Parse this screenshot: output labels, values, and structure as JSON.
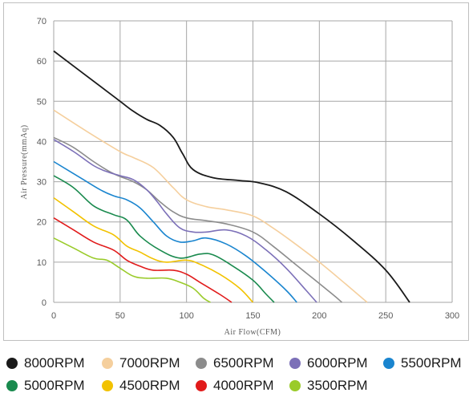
{
  "chart_data": {
    "type": "line",
    "title": "",
    "xlabel": "Air Flow(CFM)",
    "ylabel": "Air Pressure(mmAq)",
    "xlim": [
      0,
      300
    ],
    "ylim": [
      0,
      70
    ],
    "xticks": [
      "0",
      "50",
      "100",
      "150",
      "200",
      "250",
      "300"
    ],
    "yticks": [
      "0",
      "10",
      "20",
      "30",
      "40",
      "50",
      "60",
      "70"
    ],
    "grid": true,
    "legend_position": "bottom",
    "series": [
      {
        "name": "8000RPM",
        "color": "#1a1a1a",
        "points": [
          [
            0,
            62.5
          ],
          [
            20,
            57.5
          ],
          [
            40,
            52.5
          ],
          [
            50,
            50
          ],
          [
            60,
            47.5
          ],
          [
            70,
            45.5
          ],
          [
            80,
            44
          ],
          [
            90,
            41
          ],
          [
            97,
            37
          ],
          [
            105,
            33
          ],
          [
            120,
            31
          ],
          [
            140,
            30.3
          ],
          [
            155,
            29.7
          ],
          [
            175,
            27.5
          ],
          [
            200,
            22
          ],
          [
            225,
            15.5
          ],
          [
            250,
            8
          ],
          [
            268,
            0
          ]
        ]
      },
      {
        "name": "7000RPM",
        "color": "#f5cf9d",
        "points": [
          [
            0,
            47.8
          ],
          [
            25,
            42.5
          ],
          [
            50,
            37.5
          ],
          [
            60,
            36
          ],
          [
            75,
            33.5
          ],
          [
            90,
            28.5
          ],
          [
            100,
            25.5
          ],
          [
            115,
            23.8
          ],
          [
            130,
            23
          ],
          [
            150,
            21.5
          ],
          [
            165,
            18.5
          ],
          [
            180,
            15
          ],
          [
            200,
            10
          ],
          [
            220,
            4.5
          ],
          [
            236,
            0
          ]
        ]
      },
      {
        "name": "6500RPM",
        "color": "#8c8c8c",
        "points": [
          [
            0,
            41
          ],
          [
            15,
            38.5
          ],
          [
            30,
            35
          ],
          [
            45,
            32
          ],
          [
            60,
            30
          ],
          [
            70,
            28
          ],
          [
            80,
            25
          ],
          [
            90,
            22.5
          ],
          [
            100,
            21
          ],
          [
            115,
            20.3
          ],
          [
            130,
            19.5
          ],
          [
            150,
            17.5
          ],
          [
            165,
            14
          ],
          [
            180,
            10
          ],
          [
            195,
            6
          ],
          [
            210,
            2
          ],
          [
            217,
            0
          ]
        ]
      },
      {
        "name": "6000RPM",
        "color": "#7c70b8",
        "points": [
          [
            0,
            40.5
          ],
          [
            15,
            37.5
          ],
          [
            30,
            34
          ],
          [
            40,
            32.5
          ],
          [
            50,
            31.5
          ],
          [
            60,
            30.5
          ],
          [
            70,
            28
          ],
          [
            78,
            25
          ],
          [
            85,
            22
          ],
          [
            95,
            18.5
          ],
          [
            105,
            17.5
          ],
          [
            115,
            17.5
          ],
          [
            130,
            18
          ],
          [
            145,
            16.5
          ],
          [
            160,
            13
          ],
          [
            175,
            8.5
          ],
          [
            190,
            3
          ],
          [
            198,
            0
          ]
        ]
      },
      {
        "name": "5500RPM",
        "color": "#1a85cf",
        "points": [
          [
            0,
            35
          ],
          [
            20,
            31
          ],
          [
            35,
            28
          ],
          [
            45,
            26.5
          ],
          [
            55,
            25.5
          ],
          [
            65,
            23.5
          ],
          [
            75,
            20
          ],
          [
            85,
            16.5
          ],
          [
            95,
            15
          ],
          [
            105,
            15.3
          ],
          [
            115,
            16
          ],
          [
            130,
            14.5
          ],
          [
            145,
            11.5
          ],
          [
            160,
            7.5
          ],
          [
            175,
            3
          ],
          [
            183,
            0
          ]
        ]
      },
      {
        "name": "5000RPM",
        "color": "#1a8a4e",
        "points": [
          [
            0,
            31.5
          ],
          [
            15,
            28.5
          ],
          [
            30,
            24
          ],
          [
            45,
            21.8
          ],
          [
            55,
            20.5
          ],
          [
            65,
            16.5
          ],
          [
            80,
            13
          ],
          [
            95,
            11
          ],
          [
            110,
            12
          ],
          [
            120,
            11.8
          ],
          [
            135,
            9
          ],
          [
            150,
            5.5
          ],
          [
            160,
            2
          ],
          [
            166,
            0
          ]
        ]
      },
      {
        "name": "4500RPM",
        "color": "#f2c200",
        "points": [
          [
            0,
            26
          ],
          [
            15,
            22.5
          ],
          [
            30,
            19
          ],
          [
            45,
            16.8
          ],
          [
            55,
            14
          ],
          [
            65,
            12.5
          ],
          [
            75,
            10.8
          ],
          [
            85,
            10
          ],
          [
            100,
            10.5
          ],
          [
            110,
            9.5
          ],
          [
            125,
            7
          ],
          [
            140,
            3.5
          ],
          [
            150,
            0
          ]
        ]
      },
      {
        "name": "4000RPM",
        "color": "#e11b1b",
        "points": [
          [
            0,
            21
          ],
          [
            15,
            18
          ],
          [
            30,
            15
          ],
          [
            45,
            13
          ],
          [
            55,
            10.5
          ],
          [
            65,
            9
          ],
          [
            75,
            8
          ],
          [
            90,
            8
          ],
          [
            100,
            7
          ],
          [
            110,
            5
          ],
          [
            125,
            2
          ],
          [
            134,
            0
          ]
        ]
      },
      {
        "name": "3500RPM",
        "color": "#9acb2a",
        "points": [
          [
            0,
            16
          ],
          [
            15,
            13.5
          ],
          [
            30,
            11
          ],
          [
            40,
            10.5
          ],
          [
            50,
            8.5
          ],
          [
            60,
            6.5
          ],
          [
            70,
            6
          ],
          [
            85,
            6
          ],
          [
            95,
            5
          ],
          [
            105,
            3.5
          ],
          [
            113,
            1
          ],
          [
            118,
            0
          ]
        ]
      }
    ]
  }
}
